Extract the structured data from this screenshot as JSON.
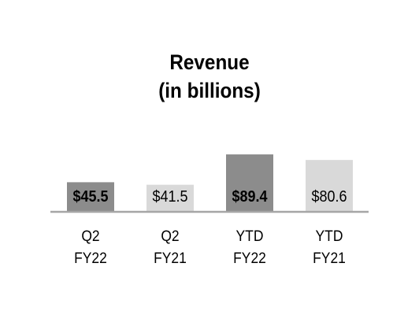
{
  "chart_data": {
    "type": "bar",
    "title": [
      "Revenue",
      "(in billions)"
    ],
    "xlabel": "",
    "ylabel": "",
    "ylim": [
      0,
      100
    ],
    "grid": false,
    "legend": "none",
    "categories": [
      [
        "Q2",
        "FY22"
      ],
      [
        "Q2",
        "FY21"
      ],
      [
        "YTD",
        "FY22"
      ],
      [
        "YTD",
        "FY21"
      ]
    ],
    "values": [
      45.5,
      41.5,
      89.4,
      80.6
    ],
    "data_labels": [
      "$45.5",
      "$41.5",
      "$89.4",
      "$80.6"
    ],
    "bar_colors": [
      "#8c8c8c",
      "#d9d9d9",
      "#8c8c8c",
      "#d9d9d9"
    ],
    "label_bold": [
      true,
      false,
      true,
      false
    ],
    "baseline_color": "#a6a6a6"
  }
}
